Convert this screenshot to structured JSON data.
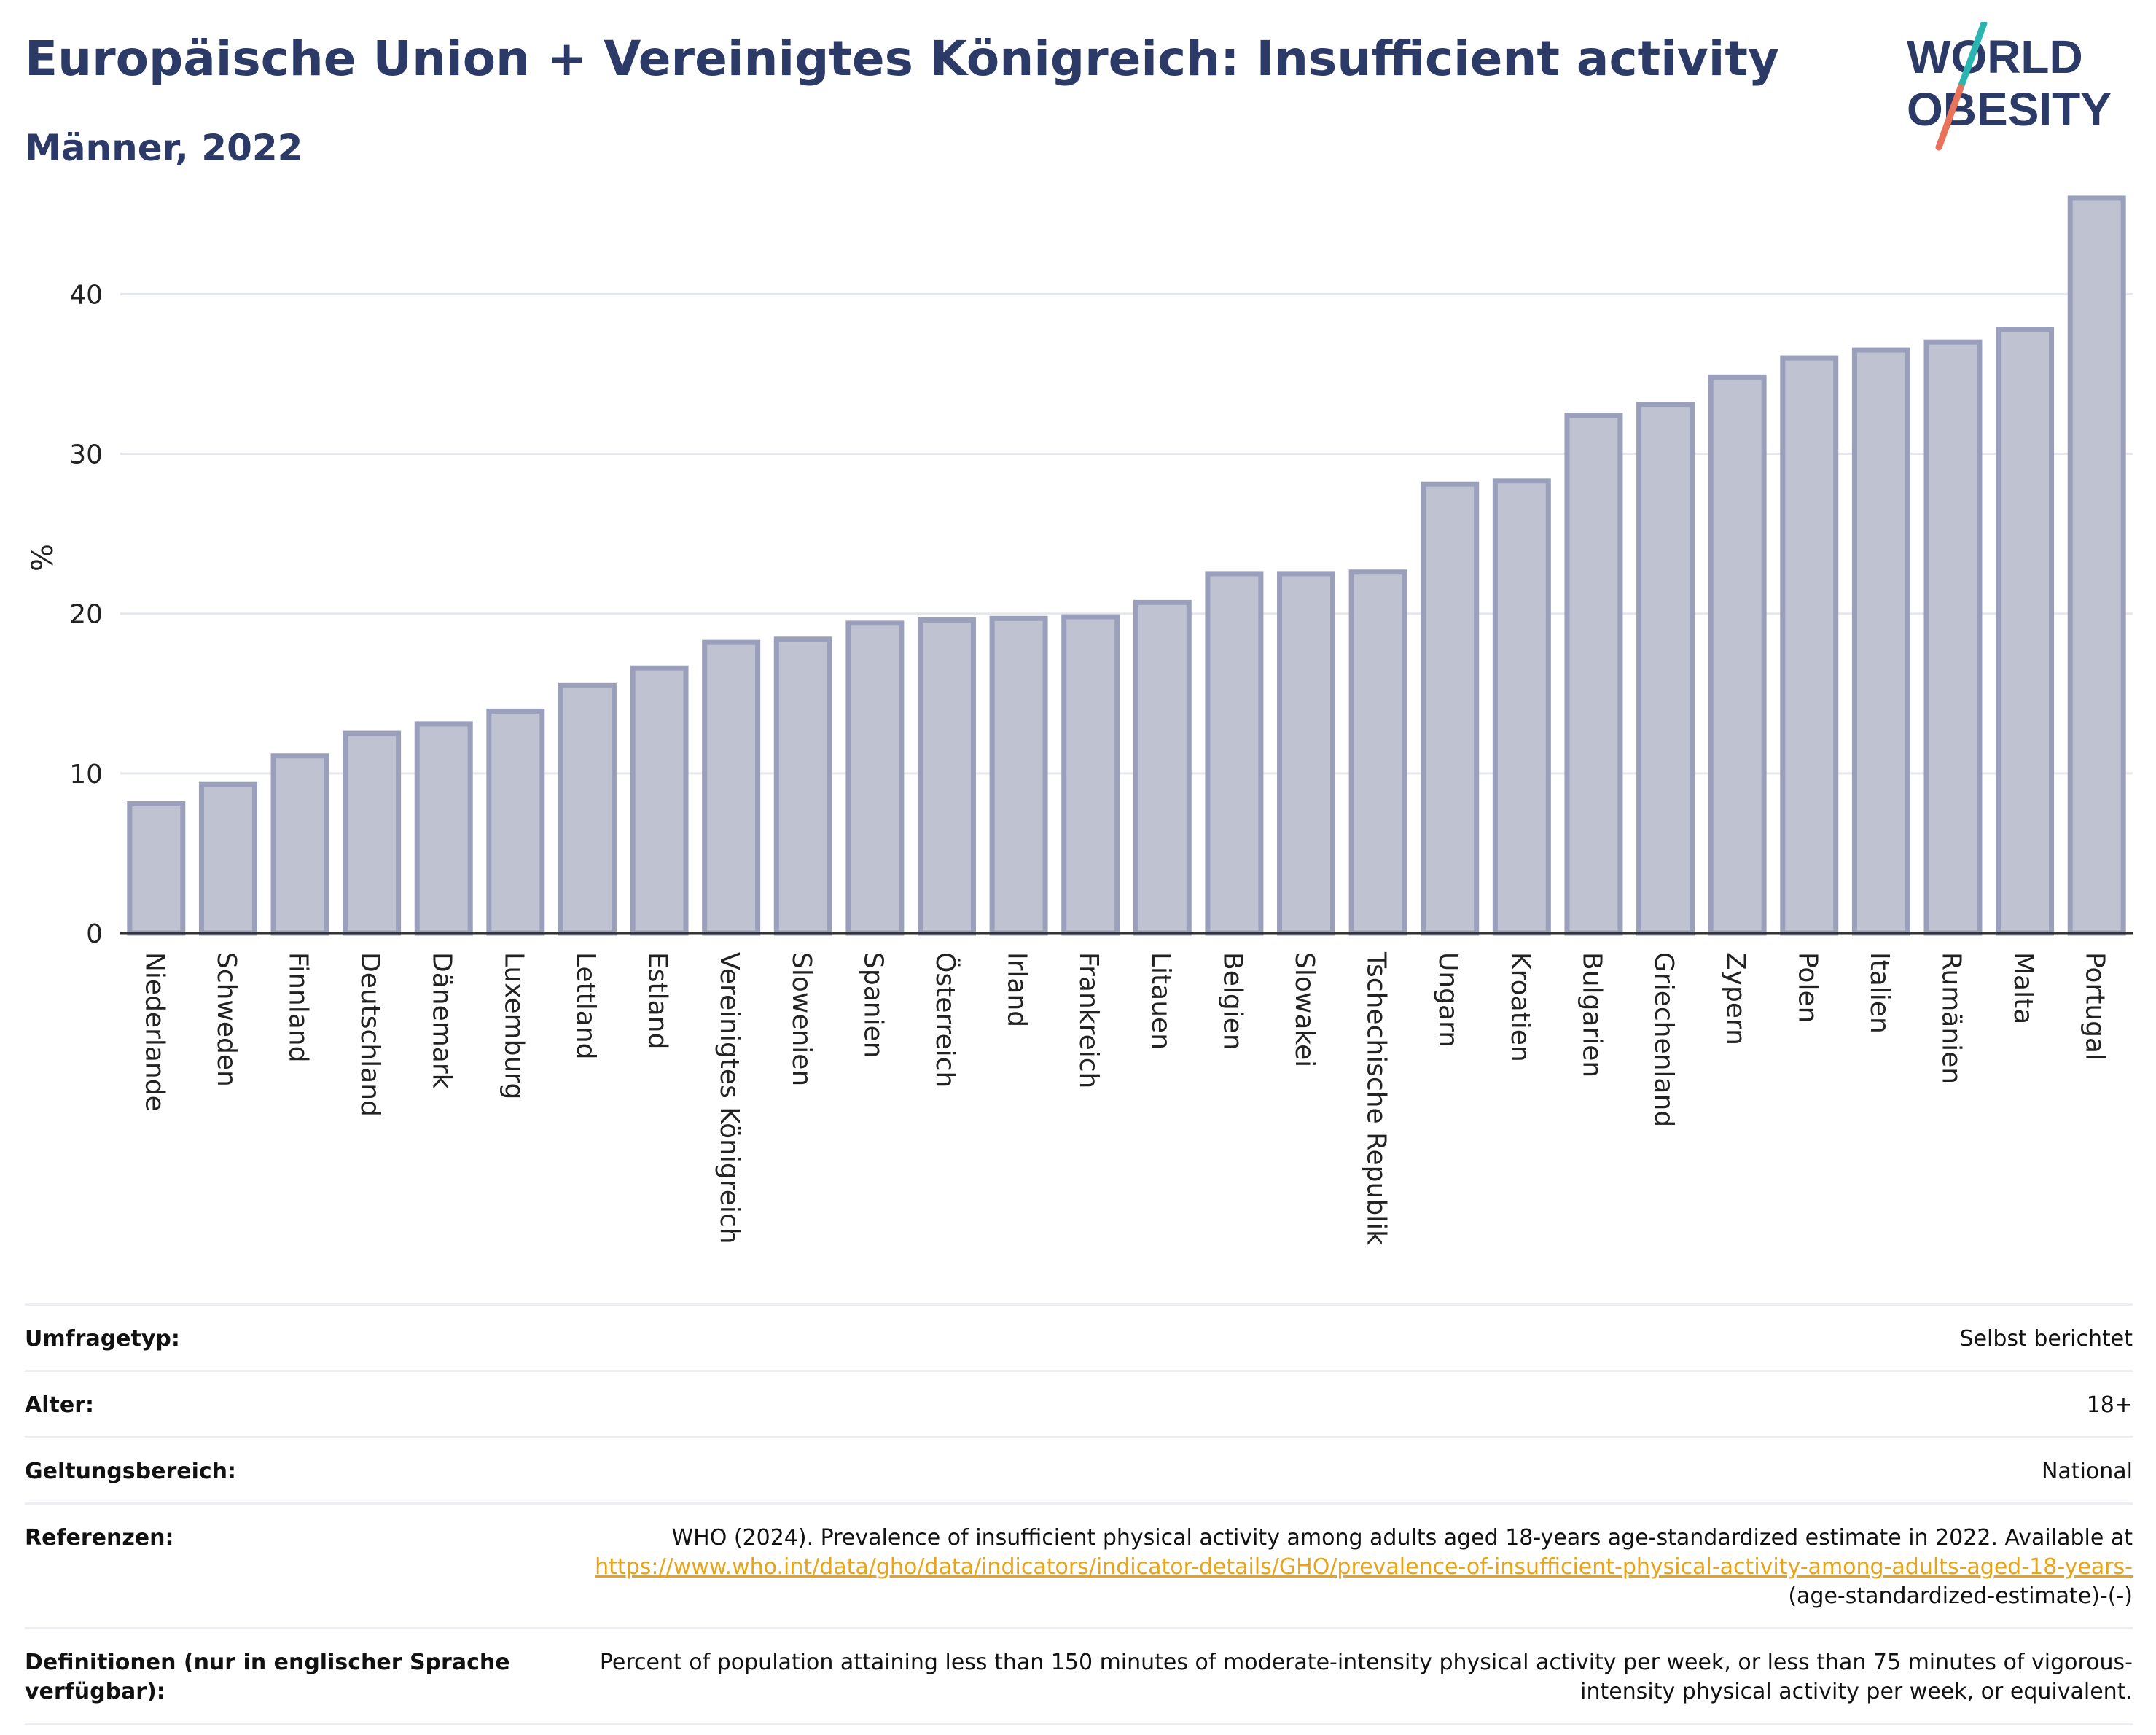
{
  "header": {
    "title": "Europäische Union + Vereinigtes Königreich: Insufficient activity",
    "subtitle": "Männer, 2022"
  },
  "logo": {
    "line1": "WORLD",
    "line2": "OBESITY",
    "text_color": "#2b3a67",
    "slash_colors": [
      "#2bb5b0",
      "#e8735a"
    ]
  },
  "colors": {
    "bar_fill": "#bfc2d1",
    "bar_stroke": "#9aa0bb",
    "grid": "#e5e7ef",
    "axis": "#333333"
  },
  "chart_data": {
    "type": "bar",
    "ylabel": "%",
    "xlabel": "",
    "ylim": [
      0,
      47
    ],
    "yticks": [
      0,
      10,
      20,
      30,
      40
    ],
    "grid": true,
    "categories": [
      "Niederlande",
      "Schweden",
      "Finnland",
      "Deutschland",
      "Dänemark",
      "Luxemburg",
      "Lettland",
      "Estland",
      "Vereinigtes Königreich",
      "Slowenien",
      "Spanien",
      "Österreich",
      "Irland",
      "Frankreich",
      "Litauen",
      "Belgien",
      "Slowakei",
      "Tschechische Republik",
      "Ungarn",
      "Kroatien",
      "Bulgarien",
      "Griechenland",
      "Zypern",
      "Polen",
      "Italien",
      "Rumänien",
      "Malta",
      "Portugal"
    ],
    "values": [
      8.1,
      9.3,
      11.1,
      12.5,
      13.1,
      13.9,
      15.5,
      16.6,
      18.2,
      18.4,
      19.4,
      19.6,
      19.7,
      19.8,
      20.7,
      22.5,
      22.5,
      22.6,
      28.1,
      28.3,
      32.4,
      33.1,
      34.8,
      36.0,
      36.5,
      37.0,
      37.8,
      46.0
    ]
  },
  "meta": {
    "survey_type_label": "Umfragetyp:",
    "survey_type_value": "Selbst berichtet",
    "age_label": "Alter:",
    "age_value": "18+",
    "scope_label": "Geltungsbereich:",
    "scope_value": "National",
    "references_label": "Referenzen:",
    "references_text": "WHO (2024). Prevalence of insufficient physical activity among adults aged 18-years age-standardized estimate in 2022. Available at",
    "references_link": "https://www.who.int/data/gho/data/indicators/indicator-details/GHO/prevalence-of-insufficient-physical-activity-among-adults-aged-18-years-",
    "references_suffix": "(age-standardized-estimate)-(-)",
    "definitions_label": "Definitionen (nur in englischer Sprache verfügbar):",
    "definitions_value": "Percent of population attaining less than 150 minutes of moderate-intensity physical activity per week, or less than 75 minutes of vigorous-intensity physical activity per week, or equivalent."
  }
}
